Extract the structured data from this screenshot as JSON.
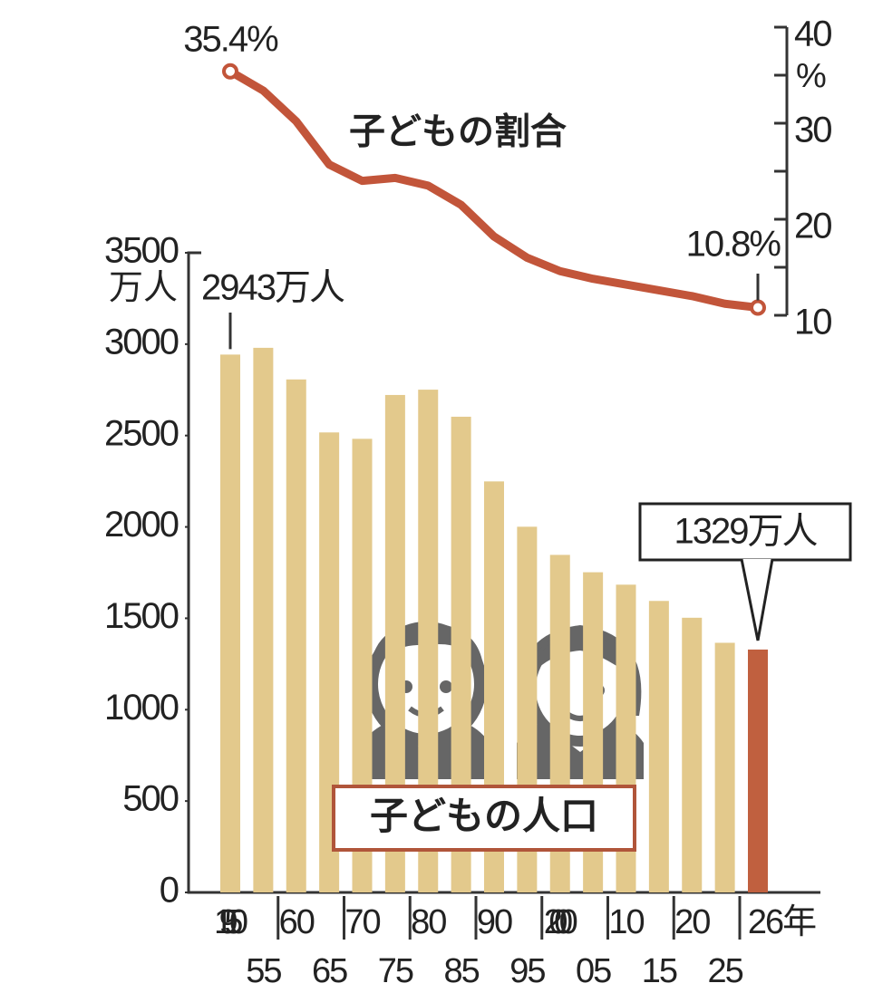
{
  "chart_data": {
    "type": "bar",
    "categories": [
      "1950",
      "55",
      "60",
      "65",
      "70",
      "75",
      "80",
      "85",
      "90",
      "95",
      "2000",
      "05",
      "10",
      "15",
      "20",
      "25",
      "26年"
    ],
    "series": [
      {
        "name": "子どもの人口",
        "type": "bar",
        "colors": [
          "#e3c98c",
          "#e3c98c",
          "#e3c98c",
          "#e3c98c",
          "#e3c98c",
          "#e3c98c",
          "#e3c98c",
          "#e3c98c",
          "#e3c98c",
          "#e3c98c",
          "#e3c98c",
          "#e3c98c",
          "#e3c98c",
          "#e3c98c",
          "#e3c98c",
          "#e3c98c",
          "#c0603f"
        ],
        "values": [
          2943,
          2980,
          2807,
          2517,
          2482,
          2722,
          2751,
          2603,
          2249,
          2001,
          1847,
          1752,
          1684,
          1595,
          1503,
          1366,
          1329
        ],
        "value_labels": [
          "2943万人",
          null,
          null,
          null,
          null,
          null,
          null,
          null,
          null,
          null,
          null,
          null,
          null,
          null,
          null,
          null,
          "1329万人"
        ]
      },
      {
        "name": "子どもの割合",
        "type": "line",
        "axis": "y2",
        "color": "#c2553a",
        "values": [
          35.4,
          33.4,
          30.2,
          25.7,
          24.0,
          24.3,
          23.5,
          21.5,
          18.2,
          16.0,
          14.6,
          13.8,
          13.2,
          12.6,
          12.0,
          11.2,
          10.8
        ],
        "value_labels": [
          "35.4%",
          null,
          null,
          null,
          null,
          null,
          null,
          null,
          null,
          null,
          null,
          null,
          null,
          null,
          null,
          null,
          "10.8%"
        ]
      }
    ],
    "ylim": [
      0,
      3500
    ],
    "yticks": [
      0,
      500,
      1000,
      1500,
      2000,
      2500,
      3000,
      3500
    ],
    "y_unit": "万人",
    "y2lim": [
      10,
      40
    ],
    "y2ticks": [
      10,
      20,
      30,
      40
    ],
    "y2minorticks": [
      15,
      25,
      35
    ],
    "y2_unit": "%"
  }
}
